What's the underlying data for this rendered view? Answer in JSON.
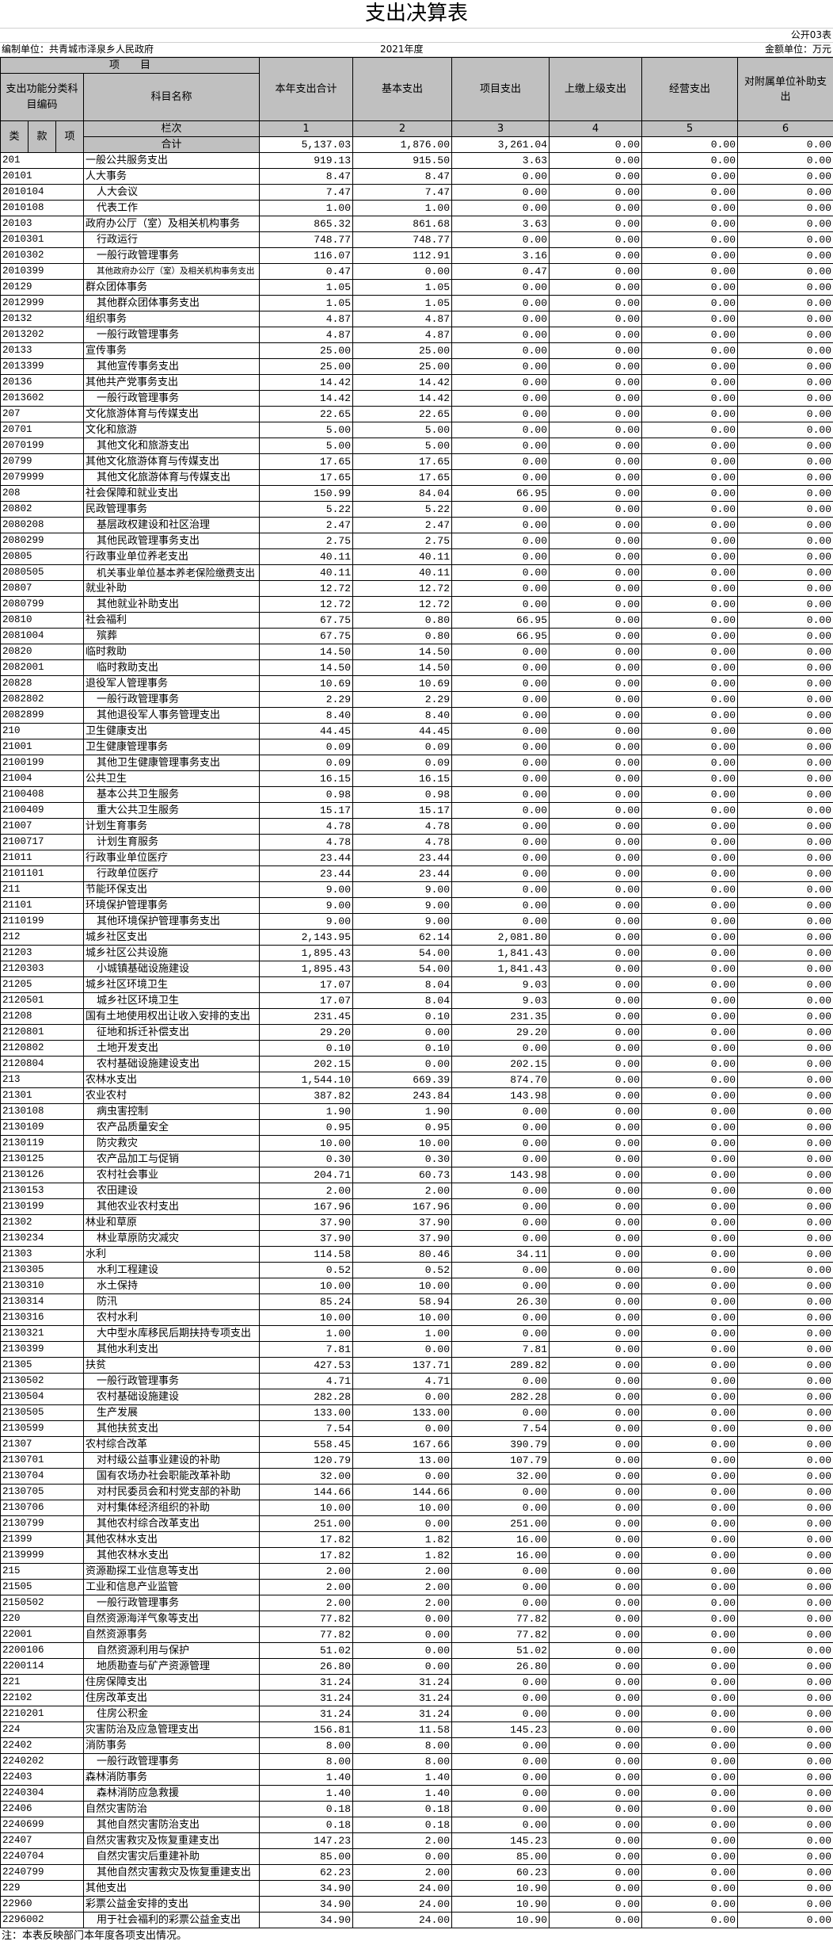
{
  "title": "支出决算表",
  "form_no": "公开03表",
  "unit_label": "编制单位：共青城市泽泉乡人民政府",
  "year": "2021年度",
  "currency_unit": "金额单位：万元",
  "header": {
    "item": "项　　目",
    "code_group": "支出功能分类科目编码",
    "name": "科目名称",
    "cols": [
      "本年支出合计",
      "基本支出",
      "项目支出",
      "上缴上级支出",
      "经营支出",
      "对附属单位补助支出"
    ],
    "lei": "类",
    "kuan": "款",
    "xiang": "项",
    "lanci": "栏次",
    "col_nums": [
      "1",
      "2",
      "3",
      "4",
      "5",
      "6"
    ],
    "total_label": "合计",
    "totals": [
      "5,137.03",
      "1,876.00",
      "3,261.04",
      "0.00",
      "0.00",
      "0.00"
    ]
  },
  "table": {
    "rows": [
      [
        "201",
        "一般公共服务支出",
        "919.13",
        "915.50",
        "3.63",
        "0.00",
        "0.00",
        "0.00"
      ],
      [
        "20101",
        "人大事务",
        "8.47",
        "8.47",
        "0.00",
        "0.00",
        "0.00",
        "0.00"
      ],
      [
        "2010104",
        "人大会议",
        "7.47",
        "7.47",
        "0.00",
        "0.00",
        "0.00",
        "0.00"
      ],
      [
        "2010108",
        "代表工作",
        "1.00",
        "1.00",
        "0.00",
        "0.00",
        "0.00",
        "0.00"
      ],
      [
        "20103",
        "政府办公厅（室）及相关机构事务",
        "865.32",
        "861.68",
        "3.63",
        "0.00",
        "0.00",
        "0.00"
      ],
      [
        "2010301",
        "行政运行",
        "748.77",
        "748.77",
        "0.00",
        "0.00",
        "0.00",
        "0.00"
      ],
      [
        "2010302",
        "一般行政管理事务",
        "116.07",
        "112.91",
        "3.16",
        "0.00",
        "0.00",
        "0.00"
      ],
      [
        "2010399",
        "其他政府办公厅（室）及相关机构事务支出",
        "0.47",
        "0.00",
        "0.47",
        "0.00",
        "0.00",
        "0.00"
      ],
      [
        "20129",
        "群众团体事务",
        "1.05",
        "1.05",
        "0.00",
        "0.00",
        "0.00",
        "0.00"
      ],
      [
        "2012999",
        "其他群众团体事务支出",
        "1.05",
        "1.05",
        "0.00",
        "0.00",
        "0.00",
        "0.00"
      ],
      [
        "20132",
        "组织事务",
        "4.87",
        "4.87",
        "0.00",
        "0.00",
        "0.00",
        "0.00"
      ],
      [
        "2013202",
        "一般行政管理事务",
        "4.87",
        "4.87",
        "0.00",
        "0.00",
        "0.00",
        "0.00"
      ],
      [
        "20133",
        "宣传事务",
        "25.00",
        "25.00",
        "0.00",
        "0.00",
        "0.00",
        "0.00"
      ],
      [
        "2013399",
        "其他宣传事务支出",
        "25.00",
        "25.00",
        "0.00",
        "0.00",
        "0.00",
        "0.00"
      ],
      [
        "20136",
        "其他共产党事务支出",
        "14.42",
        "14.42",
        "0.00",
        "0.00",
        "0.00",
        "0.00"
      ],
      [
        "2013602",
        "一般行政管理事务",
        "14.42",
        "14.42",
        "0.00",
        "0.00",
        "0.00",
        "0.00"
      ],
      [
        "207",
        "文化旅游体育与传媒支出",
        "22.65",
        "22.65",
        "0.00",
        "0.00",
        "0.00",
        "0.00"
      ],
      [
        "20701",
        "文化和旅游",
        "5.00",
        "5.00",
        "0.00",
        "0.00",
        "0.00",
        "0.00"
      ],
      [
        "2070199",
        "其他文化和旅游支出",
        "5.00",
        "5.00",
        "0.00",
        "0.00",
        "0.00",
        "0.00"
      ],
      [
        "20799",
        "其他文化旅游体育与传媒支出",
        "17.65",
        "17.65",
        "0.00",
        "0.00",
        "0.00",
        "0.00"
      ],
      [
        "2079999",
        "其他文化旅游体育与传媒支出",
        "17.65",
        "17.65",
        "0.00",
        "0.00",
        "0.00",
        "0.00"
      ],
      [
        "208",
        "社会保障和就业支出",
        "150.99",
        "84.04",
        "66.95",
        "0.00",
        "0.00",
        "0.00"
      ],
      [
        "20802",
        "民政管理事务",
        "5.22",
        "5.22",
        "0.00",
        "0.00",
        "0.00",
        "0.00"
      ],
      [
        "2080208",
        "基层政权建设和社区治理",
        "2.47",
        "2.47",
        "0.00",
        "0.00",
        "0.00",
        "0.00"
      ],
      [
        "2080299",
        "其他民政管理事务支出",
        "2.75",
        "2.75",
        "0.00",
        "0.00",
        "0.00",
        "0.00"
      ],
      [
        "20805",
        "行政事业单位养老支出",
        "40.11",
        "40.11",
        "0.00",
        "0.00",
        "0.00",
        "0.00"
      ],
      [
        "2080505",
        "机关事业单位基本养老保险缴费支出",
        "40.11",
        "40.11",
        "0.00",
        "0.00",
        "0.00",
        "0.00"
      ],
      [
        "20807",
        "就业补助",
        "12.72",
        "12.72",
        "0.00",
        "0.00",
        "0.00",
        "0.00"
      ],
      [
        "2080799",
        "其他就业补助支出",
        "12.72",
        "12.72",
        "0.00",
        "0.00",
        "0.00",
        "0.00"
      ],
      [
        "20810",
        "社会福利",
        "67.75",
        "0.80",
        "66.95",
        "0.00",
        "0.00",
        "0.00"
      ],
      [
        "2081004",
        "殡葬",
        "67.75",
        "0.80",
        "66.95",
        "0.00",
        "0.00",
        "0.00"
      ],
      [
        "20820",
        "临时救助",
        "14.50",
        "14.50",
        "0.00",
        "0.00",
        "0.00",
        "0.00"
      ],
      [
        "2082001",
        "临时救助支出",
        "14.50",
        "14.50",
        "0.00",
        "0.00",
        "0.00",
        "0.00"
      ],
      [
        "20828",
        "退役军人管理事务",
        "10.69",
        "10.69",
        "0.00",
        "0.00",
        "0.00",
        "0.00"
      ],
      [
        "2082802",
        "一般行政管理事务",
        "2.29",
        "2.29",
        "0.00",
        "0.00",
        "0.00",
        "0.00"
      ],
      [
        "2082899",
        "其他退役军人事务管理支出",
        "8.40",
        "8.40",
        "0.00",
        "0.00",
        "0.00",
        "0.00"
      ],
      [
        "210",
        "卫生健康支出",
        "44.45",
        "44.45",
        "0.00",
        "0.00",
        "0.00",
        "0.00"
      ],
      [
        "21001",
        "卫生健康管理事务",
        "0.09",
        "0.09",
        "0.00",
        "0.00",
        "0.00",
        "0.00"
      ],
      [
        "2100199",
        "其他卫生健康管理事务支出",
        "0.09",
        "0.09",
        "0.00",
        "0.00",
        "0.00",
        "0.00"
      ],
      [
        "21004",
        "公共卫生",
        "16.15",
        "16.15",
        "0.00",
        "0.00",
        "0.00",
        "0.00"
      ],
      [
        "2100408",
        "基本公共卫生服务",
        "0.98",
        "0.98",
        "0.00",
        "0.00",
        "0.00",
        "0.00"
      ],
      [
        "2100409",
        "重大公共卫生服务",
        "15.17",
        "15.17",
        "0.00",
        "0.00",
        "0.00",
        "0.00"
      ],
      [
        "21007",
        "计划生育事务",
        "4.78",
        "4.78",
        "0.00",
        "0.00",
        "0.00",
        "0.00"
      ],
      [
        "2100717",
        "计划生育服务",
        "4.78",
        "4.78",
        "0.00",
        "0.00",
        "0.00",
        "0.00"
      ],
      [
        "21011",
        "行政事业单位医疗",
        "23.44",
        "23.44",
        "0.00",
        "0.00",
        "0.00",
        "0.00"
      ],
      [
        "2101101",
        "行政单位医疗",
        "23.44",
        "23.44",
        "0.00",
        "0.00",
        "0.00",
        "0.00"
      ],
      [
        "211",
        "节能环保支出",
        "9.00",
        "9.00",
        "0.00",
        "0.00",
        "0.00",
        "0.00"
      ],
      [
        "21101",
        "环境保护管理事务",
        "9.00",
        "9.00",
        "0.00",
        "0.00",
        "0.00",
        "0.00"
      ],
      [
        "2110199",
        "其他环境保护管理事务支出",
        "9.00",
        "9.00",
        "0.00",
        "0.00",
        "0.00",
        "0.00"
      ],
      [
        "212",
        "城乡社区支出",
        "2,143.95",
        "62.14",
        "2,081.80",
        "0.00",
        "0.00",
        "0.00"
      ],
      [
        "21203",
        "城乡社区公共设施",
        "1,895.43",
        "54.00",
        "1,841.43",
        "0.00",
        "0.00",
        "0.00"
      ],
      [
        "2120303",
        "小城镇基础设施建设",
        "1,895.43",
        "54.00",
        "1,841.43",
        "0.00",
        "0.00",
        "0.00"
      ],
      [
        "21205",
        "城乡社区环境卫生",
        "17.07",
        "8.04",
        "9.03",
        "0.00",
        "0.00",
        "0.00"
      ],
      [
        "2120501",
        "城乡社区环境卫生",
        "17.07",
        "8.04",
        "9.03",
        "0.00",
        "0.00",
        "0.00"
      ],
      [
        "21208",
        "国有土地使用权出让收入安排的支出",
        "231.45",
        "0.10",
        "231.35",
        "0.00",
        "0.00",
        "0.00"
      ],
      [
        "2120801",
        "征地和拆迁补偿支出",
        "29.20",
        "0.00",
        "29.20",
        "0.00",
        "0.00",
        "0.00"
      ],
      [
        "2120802",
        "土地开发支出",
        "0.10",
        "0.10",
        "0.00",
        "0.00",
        "0.00",
        "0.00"
      ],
      [
        "2120804",
        "农村基础设施建设支出",
        "202.15",
        "0.00",
        "202.15",
        "0.00",
        "0.00",
        "0.00"
      ],
      [
        "213",
        "农林水支出",
        "1,544.10",
        "669.39",
        "874.70",
        "0.00",
        "0.00",
        "0.00"
      ],
      [
        "21301",
        "农业农村",
        "387.82",
        "243.84",
        "143.98",
        "0.00",
        "0.00",
        "0.00"
      ],
      [
        "2130108",
        "病虫害控制",
        "1.90",
        "1.90",
        "0.00",
        "0.00",
        "0.00",
        "0.00"
      ],
      [
        "2130109",
        "农产品质量安全",
        "0.95",
        "0.95",
        "0.00",
        "0.00",
        "0.00",
        "0.00"
      ],
      [
        "2130119",
        "防灾救灾",
        "10.00",
        "10.00",
        "0.00",
        "0.00",
        "0.00",
        "0.00"
      ],
      [
        "2130125",
        "农产品加工与促销",
        "0.30",
        "0.30",
        "0.00",
        "0.00",
        "0.00",
        "0.00"
      ],
      [
        "2130126",
        "农村社会事业",
        "204.71",
        "60.73",
        "143.98",
        "0.00",
        "0.00",
        "0.00"
      ],
      [
        "2130153",
        "农田建设",
        "2.00",
        "2.00",
        "0.00",
        "0.00",
        "0.00",
        "0.00"
      ],
      [
        "2130199",
        "其他农业农村支出",
        "167.96",
        "167.96",
        "0.00",
        "0.00",
        "0.00",
        "0.00"
      ],
      [
        "21302",
        "林业和草原",
        "37.90",
        "37.90",
        "0.00",
        "0.00",
        "0.00",
        "0.00"
      ],
      [
        "2130234",
        "林业草原防灾减灾",
        "37.90",
        "37.90",
        "0.00",
        "0.00",
        "0.00",
        "0.00"
      ],
      [
        "21303",
        "水利",
        "114.58",
        "80.46",
        "34.11",
        "0.00",
        "0.00",
        "0.00"
      ],
      [
        "2130305",
        "水利工程建设",
        "0.52",
        "0.52",
        "0.00",
        "0.00",
        "0.00",
        "0.00"
      ],
      [
        "2130310",
        "水土保持",
        "10.00",
        "10.00",
        "0.00",
        "0.00",
        "0.00",
        "0.00"
      ],
      [
        "2130314",
        "防汛",
        "85.24",
        "58.94",
        "26.30",
        "0.00",
        "0.00",
        "0.00"
      ],
      [
        "2130316",
        "农村水利",
        "10.00",
        "10.00",
        "0.00",
        "0.00",
        "0.00",
        "0.00"
      ],
      [
        "2130321",
        "大中型水库移民后期扶持专项支出",
        "1.00",
        "1.00",
        "0.00",
        "0.00",
        "0.00",
        "0.00"
      ],
      [
        "2130399",
        "其他水利支出",
        "7.81",
        "0.00",
        "7.81",
        "0.00",
        "0.00",
        "0.00"
      ],
      [
        "21305",
        "扶贫",
        "427.53",
        "137.71",
        "289.82",
        "0.00",
        "0.00",
        "0.00"
      ],
      [
        "2130502",
        "一般行政管理事务",
        "4.71",
        "4.71",
        "0.00",
        "0.00",
        "0.00",
        "0.00"
      ],
      [
        "2130504",
        "农村基础设施建设",
        "282.28",
        "0.00",
        "282.28",
        "0.00",
        "0.00",
        "0.00"
      ],
      [
        "2130505",
        "生产发展",
        "133.00",
        "133.00",
        "0.00",
        "0.00",
        "0.00",
        "0.00"
      ],
      [
        "2130599",
        "其他扶贫支出",
        "7.54",
        "0.00",
        "7.54",
        "0.00",
        "0.00",
        "0.00"
      ],
      [
        "21307",
        "农村综合改革",
        "558.45",
        "167.66",
        "390.79",
        "0.00",
        "0.00",
        "0.00"
      ],
      [
        "2130701",
        "对村级公益事业建设的补助",
        "120.79",
        "13.00",
        "107.79",
        "0.00",
        "0.00",
        "0.00"
      ],
      [
        "2130704",
        "国有农场办社会职能改革补助",
        "32.00",
        "0.00",
        "32.00",
        "0.00",
        "0.00",
        "0.00"
      ],
      [
        "2130705",
        "对村民委员会和村党支部的补助",
        "144.66",
        "144.66",
        "0.00",
        "0.00",
        "0.00",
        "0.00"
      ],
      [
        "2130706",
        "对村集体经济组织的补助",
        "10.00",
        "10.00",
        "0.00",
        "0.00",
        "0.00",
        "0.00"
      ],
      [
        "2130799",
        "其他农村综合改革支出",
        "251.00",
        "0.00",
        "251.00",
        "0.00",
        "0.00",
        "0.00"
      ],
      [
        "21399",
        "其他农林水支出",
        "17.82",
        "1.82",
        "16.00",
        "0.00",
        "0.00",
        "0.00"
      ],
      [
        "2139999",
        "其他农林水支出",
        "17.82",
        "1.82",
        "16.00",
        "0.00",
        "0.00",
        "0.00"
      ],
      [
        "215",
        "资源勘探工业信息等支出",
        "2.00",
        "2.00",
        "0.00",
        "0.00",
        "0.00",
        "0.00"
      ],
      [
        "21505",
        "工业和信息产业监管",
        "2.00",
        "2.00",
        "0.00",
        "0.00",
        "0.00",
        "0.00"
      ],
      [
        "2150502",
        "一般行政管理事务",
        "2.00",
        "2.00",
        "0.00",
        "0.00",
        "0.00",
        "0.00"
      ],
      [
        "220",
        "自然资源海洋气象等支出",
        "77.82",
        "0.00",
        "77.82",
        "0.00",
        "0.00",
        "0.00"
      ],
      [
        "22001",
        "自然资源事务",
        "77.82",
        "0.00",
        "77.82",
        "0.00",
        "0.00",
        "0.00"
      ],
      [
        "2200106",
        "自然资源利用与保护",
        "51.02",
        "0.00",
        "51.02",
        "0.00",
        "0.00",
        "0.00"
      ],
      [
        "2200114",
        "地质勘查与矿产资源管理",
        "26.80",
        "0.00",
        "26.80",
        "0.00",
        "0.00",
        "0.00"
      ],
      [
        "221",
        "住房保障支出",
        "31.24",
        "31.24",
        "0.00",
        "0.00",
        "0.00",
        "0.00"
      ],
      [
        "22102",
        "住房改革支出",
        "31.24",
        "31.24",
        "0.00",
        "0.00",
        "0.00",
        "0.00"
      ],
      [
        "2210201",
        "住房公积金",
        "31.24",
        "31.24",
        "0.00",
        "0.00",
        "0.00",
        "0.00"
      ],
      [
        "224",
        "灾害防治及应急管理支出",
        "156.81",
        "11.58",
        "145.23",
        "0.00",
        "0.00",
        "0.00"
      ],
      [
        "22402",
        "消防事务",
        "8.00",
        "8.00",
        "0.00",
        "0.00",
        "0.00",
        "0.00"
      ],
      [
        "2240202",
        "一般行政管理事务",
        "8.00",
        "8.00",
        "0.00",
        "0.00",
        "0.00",
        "0.00"
      ],
      [
        "22403",
        "森林消防事务",
        "1.40",
        "1.40",
        "0.00",
        "0.00",
        "0.00",
        "0.00"
      ],
      [
        "2240304",
        "森林消防应急救援",
        "1.40",
        "1.40",
        "0.00",
        "0.00",
        "0.00",
        "0.00"
      ],
      [
        "22406",
        "自然灾害防治",
        "0.18",
        "0.18",
        "0.00",
        "0.00",
        "0.00",
        "0.00"
      ],
      [
        "2240699",
        "其他自然灾害防治支出",
        "0.18",
        "0.18",
        "0.00",
        "0.00",
        "0.00",
        "0.00"
      ],
      [
        "22407",
        "自然灾害救灾及恢复重建支出",
        "147.23",
        "2.00",
        "145.23",
        "0.00",
        "0.00",
        "0.00"
      ],
      [
        "2240704",
        "自然灾害灾后重建补助",
        "85.00",
        "0.00",
        "85.00",
        "0.00",
        "0.00",
        "0.00"
      ],
      [
        "2240799",
        "其他自然灾害救灾及恢复重建支出",
        "62.23",
        "2.00",
        "60.23",
        "0.00",
        "0.00",
        "0.00"
      ],
      [
        "229",
        "其他支出",
        "34.90",
        "24.00",
        "10.90",
        "0.00",
        "0.00",
        "0.00"
      ],
      [
        "22960",
        "彩票公益金安排的支出",
        "34.90",
        "24.00",
        "10.90",
        "0.00",
        "0.00",
        "0.00"
      ],
      [
        "2296002",
        "用于社会福利的彩票公益金支出",
        "34.90",
        "24.00",
        "10.90",
        "0.00",
        "0.00",
        "0.00"
      ]
    ]
  },
  "footnote": "注：本表反映部门本年度各项支出情况。",
  "colors": {
    "header_bg": "#c0c0c0",
    "border": "#000000"
  }
}
